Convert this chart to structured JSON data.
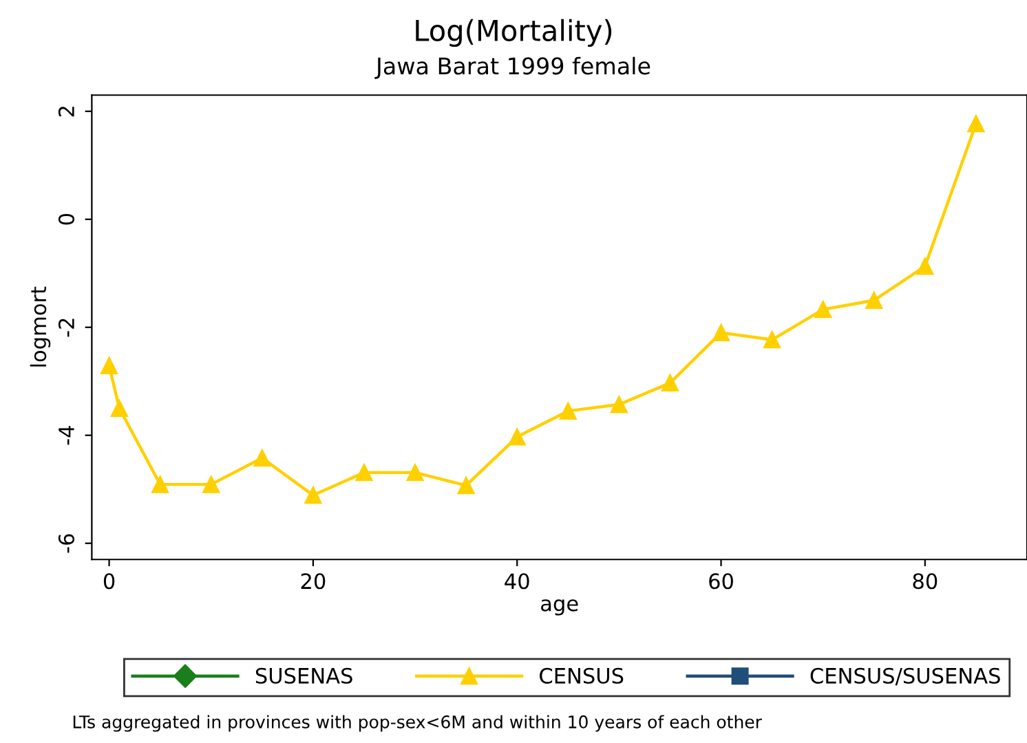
{
  "chart_data": {
    "type": "line",
    "title": "Log(Mortality)",
    "subtitle": "Jawa Barat 1999 female",
    "xlabel": "age",
    "ylabel": "logmort",
    "x": [
      0,
      1,
      5,
      10,
      15,
      20,
      25,
      30,
      35,
      40,
      45,
      50,
      55,
      60,
      65,
      70,
      75,
      80,
      85
    ],
    "series": [
      {
        "name": "SUSENAS",
        "color": "#1a7f1a",
        "marker": "diamond",
        "values": [
          null,
          null,
          null,
          null,
          null,
          null,
          null,
          null,
          null,
          null,
          null,
          null,
          null,
          null,
          null,
          null,
          null,
          null,
          null
        ]
      },
      {
        "name": "CENSUS",
        "color": "#ffd000",
        "marker": "triangle",
        "values": [
          -2.71,
          -3.5,
          -4.91,
          -4.91,
          -4.42,
          -5.11,
          -4.69,
          -4.69,
          -4.93,
          -4.03,
          -3.55,
          -3.43,
          -3.03,
          -2.1,
          -2.23,
          -1.67,
          -1.5,
          -0.87,
          1.77
        ]
      },
      {
        "name": "CENSUS/SUSENAS",
        "color": "#1f4e79",
        "marker": "square",
        "values": [
          null,
          null,
          null,
          null,
          null,
          null,
          null,
          null,
          null,
          null,
          null,
          null,
          null,
          null,
          null,
          null,
          null,
          null,
          null
        ]
      }
    ],
    "xlim": [
      -1.7,
      90
    ],
    "ylim": [
      -6.3,
      2.3
    ],
    "xticks": [
      0,
      20,
      40,
      60,
      80
    ],
    "yticks": [
      -6,
      -4,
      -2,
      0,
      2
    ],
    "grid": false,
    "legend": "bottom",
    "annotations": [
      "LTs aggregated in provinces with pop-sex<6M and within 10 years of each other"
    ]
  }
}
